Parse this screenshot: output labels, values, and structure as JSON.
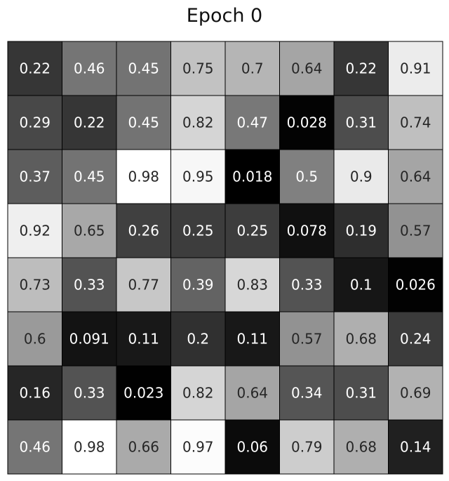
{
  "chart_data": {
    "type": "heatmap",
    "title": "Epoch 0",
    "xlabel": "",
    "ylabel": "",
    "colormap": "gray",
    "value_range": [
      0,
      1
    ],
    "grid": true,
    "rows": [
      [
        "0.22",
        "0.46",
        "0.45",
        "0.75",
        "0.7",
        "0.64",
        "0.22",
        "0.91"
      ],
      [
        "0.29",
        "0.22",
        "0.45",
        "0.82",
        "0.47",
        "0.028",
        "0.31",
        "0.74"
      ],
      [
        "0.37",
        "0.45",
        "0.98",
        "0.95",
        "0.018",
        "0.5",
        "0.9",
        "0.64"
      ],
      [
        "0.92",
        "0.65",
        "0.26",
        "0.25",
        "0.25",
        "0.078",
        "0.19",
        "0.57"
      ],
      [
        "0.73",
        "0.33",
        "0.77",
        "0.39",
        "0.83",
        "0.33",
        "0.1",
        "0.026"
      ],
      [
        "0.6",
        "0.091",
        "0.11",
        "0.2",
        "0.11",
        "0.57",
        "0.68",
        "0.24"
      ],
      [
        "0.16",
        "0.33",
        "0.023",
        "0.82",
        "0.64",
        "0.34",
        "0.31",
        "0.69"
      ],
      [
        "0.46",
        "0.98",
        "0.66",
        "0.97",
        "0.06",
        "0.79",
        "0.68",
        "0.14"
      ]
    ]
  }
}
